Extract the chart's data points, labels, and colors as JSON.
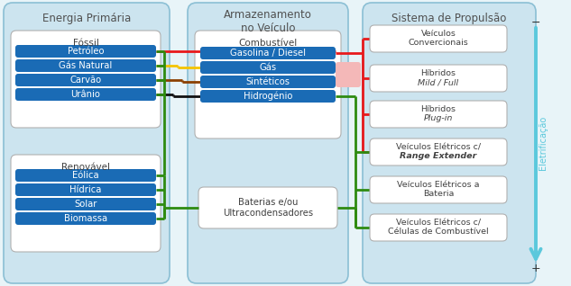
{
  "bg_color": "#e8f4f8",
  "panel_color": "#cce4ef",
  "panel_border": "#8bbfd4",
  "box_blue": "#1a6bb5",
  "box_white_bg": "#ffffff",
  "box_white_border": "#b0b0b0",
  "text_dark": "#404040",
  "text_white": "#ffffff",
  "text_panel": "#505050",
  "col1_title": "Energia Primária",
  "col2_title": "Armazenamento\nno Veículo",
  "col3_title": "Sistema de Propulsão",
  "fossil_label": "Fóssil",
  "fossil_items": [
    "Petróleo",
    "Gás Natural",
    "Carvão",
    "Urânio"
  ],
  "renovavel_label": "Renovável",
  "renovavel_items": [
    "Eólica",
    "Hídrica",
    "Solar",
    "Biomassa"
  ],
  "combustivel_label": "Combustível",
  "combustivel_items": [
    "Gasolina / Diesel",
    "Gás",
    "Sintéticos",
    "Hidrogénio"
  ],
  "storage_label": "Baterias e/ou\nUltracondensadores",
  "prop_items": [
    [
      "Veículos",
      "Convercionais"
    ],
    [
      "Híbridos",
      "Mild / Full"
    ],
    [
      "Híbridos",
      "Plug-in"
    ],
    [
      "Veículos Elétricos c/",
      "Range Extender"
    ],
    [
      "Veículos Elétricos a",
      "Bateria"
    ],
    [
      "Veículos Elétricos c/",
      "Células de Combustível"
    ]
  ],
  "prop_italic": [
    false,
    true,
    true,
    true,
    false,
    false
  ],
  "elec_label": "Eletrificação",
  "elec_minus": "−",
  "elec_plus": "+",
  "red": "#e8191b",
  "yellow": "#f5c400",
  "brown": "#8b4000",
  "black": "#111111",
  "dgreen": "#2e8b10",
  "mgreen": "#3aaa20",
  "pink": "#f4b8b8"
}
